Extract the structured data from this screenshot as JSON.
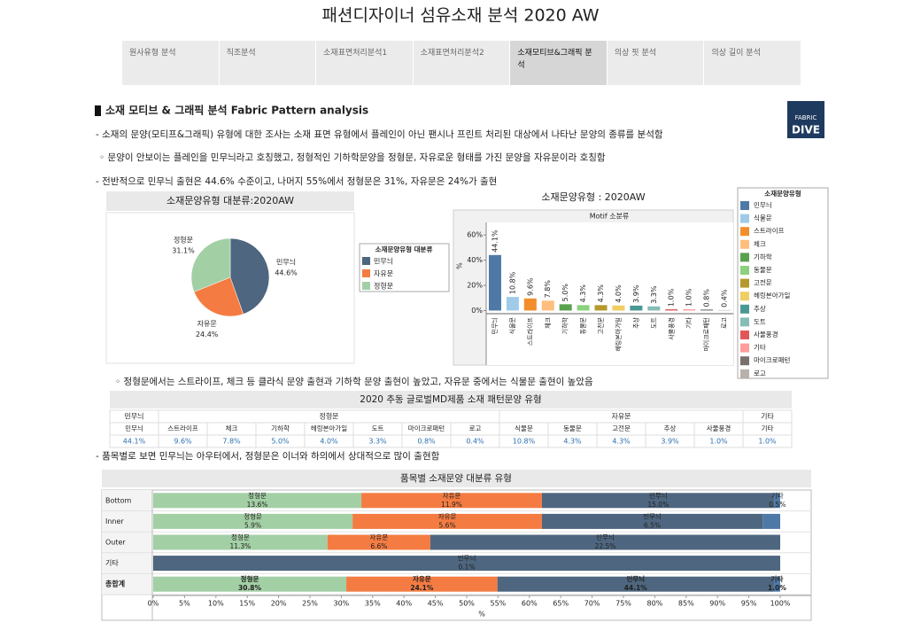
{
  "header": {
    "title": "패션디자이너 섬유소재 분석 2020 AW"
  },
  "tabs": {
    "items": [
      "원사유형 분석",
      "직조분석",
      "소재표면처리분석1",
      "소재표면처리분석2",
      "소재모티브&그래픽 분석",
      "의상 핏 분석",
      "의상 길이 분석"
    ],
    "active": 4
  },
  "section": {
    "heading": "소재 모티브 & 그래픽 분석 Fabric Pattern analysis",
    "paragraphs": [
      "- 소재의 문양(모티프&그래픽) 유형에 대한 조사는 소재 표면 유형에서 플레인이 아닌 팬시나 프린트 처리된 대상에서 나타난 문양의 종류를 분석함",
      "◦ 문양이 안보이는 플레인을 민무늬라고 호칭했고, 정형적인 기하학문양을 정형문, 자유로운 형태를 가진 문양을 자유문이라 호칭함",
      "- 전반적으로 민무늬 출현은 44.6% 수준이고, 나머지 55%에서 정형문은 31%, 자유문은 24%가 출현",
      "◦ 정형문에서는 스트라이프, 체크 등 클라식 문양 출현과 기하학 문양 출현이 높았고, 자유문 중에서는 식물문 출현이 높았음",
      "- 품목별로 보면 민무늬는 아우터에서, 정형문은 이너와 하의에서 상대적으로 많이 출현함"
    ]
  },
  "logo": {
    "top": "FABRIC",
    "bottom": "DIVE"
  },
  "chart_data": [
    {
      "type": "pie",
      "title": "소재문양유형 대분류:2020AW",
      "categories": [
        "민무늬",
        "자유문",
        "정형문"
      ],
      "values": [
        44.6,
        24.4,
        31.1
      ],
      "value_labels": [
        "44.6%",
        "24.4%",
        "31.1%"
      ],
      "colors": [
        "#4e667f",
        "#f47c42",
        "#a3cfa5"
      ],
      "legend": {
        "title": "소재문양유형 대분류",
        "position": "right"
      }
    },
    {
      "type": "bar",
      "title": "소재문양유형 : 2020AW",
      "subtitle": "Motif 소분류",
      "y_label": "%",
      "categories": [
        "민무늬",
        "식물문",
        "스트라이프",
        "체크",
        "기하학",
        "동물문",
        "고전문",
        "헤링본아가일",
        "추상",
        "도트",
        "사물풍경",
        "기타",
        "마이크로패턴",
        "로고"
      ],
      "values": [
        44.1,
        10.8,
        9.6,
        7.8,
        5.0,
        4.3,
        4.3,
        4.0,
        3.9,
        3.3,
        1.0,
        1.0,
        0.8,
        0.4
      ],
      "value_labels": [
        "44.1%",
        "10.8%",
        "9.6%",
        "7.8%",
        "5.0%",
        "4.3%",
        "4.3%",
        "4.0%",
        "3.9%",
        "3.3%",
        "1.0%",
        "1.0%",
        "0.8%",
        "0.4%"
      ],
      "colors": [
        "#4e79a7",
        "#a0cbe8",
        "#f28e2b",
        "#ffbe7d",
        "#59a14f",
        "#8cd17d",
        "#b6992d",
        "#f1ce63",
        "#499894",
        "#86bcb6",
        "#e15759",
        "#ff9d9a",
        "#79706e",
        "#bab0ac"
      ],
      "ylim": [
        -2.5,
        70
      ],
      "yticks": [
        {
          "value": 0,
          "label": "0%"
        },
        {
          "value": 20,
          "label": "20%"
        },
        {
          "value": 40,
          "label": "40%"
        },
        {
          "value": 60,
          "label": "60%"
        }
      ],
      "legend": {
        "title": "소재문양유형",
        "position": "right"
      }
    },
    {
      "type": "stacked_barh",
      "title": "품목별 소재문양 대분류 유형",
      "categories": [
        "Bottom",
        "Inner",
        "Outer",
        "기타",
        "총합계"
      ],
      "x_label": "%",
      "series": [
        {
          "name": "정형문",
          "color": "#a3cfa5",
          "values": [
            33.2,
            31.8,
            27.8,
            0,
            30.8
          ],
          "share_of_total": [
            "13.6%",
            "5.9%",
            "11.3%",
            null,
            "30.8%"
          ]
        },
        {
          "name": "자유문",
          "color": "#f47c42",
          "values": [
            28.8,
            30.2,
            16.4,
            0,
            24.1
          ],
          "share_of_total": [
            "11.9%",
            "5.6%",
            "6.6%",
            null,
            "24.1%"
          ]
        },
        {
          "name": "민무늬",
          "color": "#4e667f",
          "values": [
            37.1,
            35.2,
            55.8,
            100,
            44.1
          ],
          "share_of_total": [
            "15.0%",
            "6.5%",
            "22.5%",
            "0.1%",
            "44.1%"
          ]
        },
        {
          "name": "기타",
          "color": "#4e79a7",
          "values": [
            0.9,
            2.8,
            0,
            0,
            1.0
          ],
          "share_of_total": [
            "0.5%",
            null,
            null,
            null,
            "1.0%"
          ]
        }
      ],
      "xlim": [
        0,
        100
      ],
      "xticks": [
        {
          "value": 0,
          "label": "0%"
        },
        {
          "value": 5,
          "label": "5%"
        },
        {
          "value": 10,
          "label": "10%"
        },
        {
          "value": 15,
          "label": "15%"
        },
        {
          "value": 20,
          "label": "20%"
        },
        {
          "value": 25,
          "label": "25%"
        },
        {
          "value": 30,
          "label": "30%"
        },
        {
          "value": 35,
          "label": "35%"
        },
        {
          "value": 40,
          "label": "40%"
        },
        {
          "value": 45,
          "label": "45%"
        },
        {
          "value": 50,
          "label": "50%"
        },
        {
          "value": 55,
          "label": "55%"
        },
        {
          "value": 60,
          "label": "60%"
        },
        {
          "value": 65,
          "label": "65%"
        },
        {
          "value": 70,
          "label": "70%"
        },
        {
          "value": 75,
          "label": "75%"
        },
        {
          "value": 80,
          "label": "80%"
        },
        {
          "value": 85,
          "label": "85%"
        },
        {
          "value": 90,
          "label": "90%"
        },
        {
          "value": 95,
          "label": "95%"
        },
        {
          "value": 100,
          "label": "100%"
        }
      ]
    }
  ],
  "table": {
    "title": "2020 추동 글로벌MD제품 소재 패턴문양 유형",
    "groups": [
      {
        "name": "민무늬",
        "columns": [
          {
            "name": "민무늬",
            "value": "44.1%"
          }
        ]
      },
      {
        "name": "정형문",
        "columns": [
          {
            "name": "스트라이프",
            "value": "9.6%"
          },
          {
            "name": "체크",
            "value": "7.8%"
          },
          {
            "name": "기하학",
            "value": "5.0%"
          },
          {
            "name": "헤링본아가일",
            "value": "4.0%"
          },
          {
            "name": "도트",
            "value": "3.3%"
          },
          {
            "name": "마이크로패턴",
            "value": "0.8%"
          },
          {
            "name": "로고",
            "value": "0.4%"
          }
        ]
      },
      {
        "name": "자유문",
        "columns": [
          {
            "name": "식물문",
            "value": "10.8%"
          },
          {
            "name": "동물문",
            "value": "4.3%"
          },
          {
            "name": "고전문",
            "value": "4.3%"
          },
          {
            "name": "추상",
            "value": "3.9%"
          },
          {
            "name": "사물풍경",
            "value": "1.0%"
          }
        ]
      },
      {
        "name": "기타",
        "columns": [
          {
            "name": "기타",
            "value": "1.0%"
          }
        ]
      }
    ]
  }
}
